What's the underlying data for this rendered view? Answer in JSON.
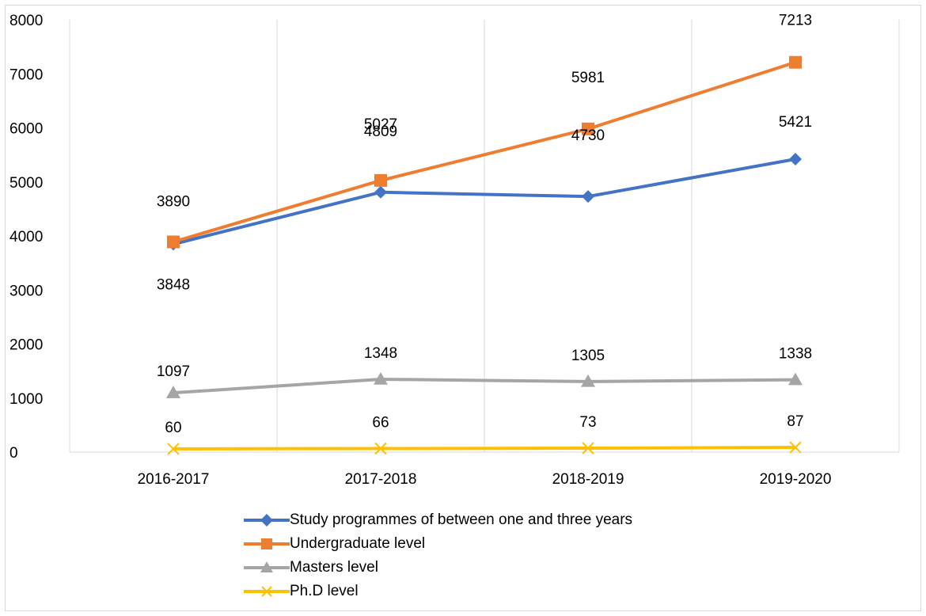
{
  "chart_data": {
    "type": "line",
    "categories": [
      "2016-2017",
      "2017-2018",
      "2018-2019",
      "2019-2020"
    ],
    "ylim": [
      0,
      8000
    ],
    "yticks": [
      0,
      1000,
      2000,
      3000,
      4000,
      5000,
      6000,
      7000,
      8000
    ],
    "grid": "vertical",
    "legend_position": "bottom",
    "series": [
      {
        "name": "Study programmes of between one and three years",
        "values": [
          3848,
          4809,
          4730,
          5421
        ],
        "color": "#4472c4",
        "marker": "diamond"
      },
      {
        "name": "Undergraduate level",
        "values": [
          3890,
          5027,
          5981,
          7213
        ],
        "color": "#ed7d31",
        "marker": "square"
      },
      {
        "name": "Masters level",
        "values": [
          1097,
          1348,
          1305,
          1338
        ],
        "color": "#a5a5a5",
        "marker": "triangle"
      },
      {
        "name": "Ph.D level",
        "values": [
          60,
          66,
          73,
          87
        ],
        "color": "#ffc000",
        "marker": "x"
      }
    ]
  }
}
